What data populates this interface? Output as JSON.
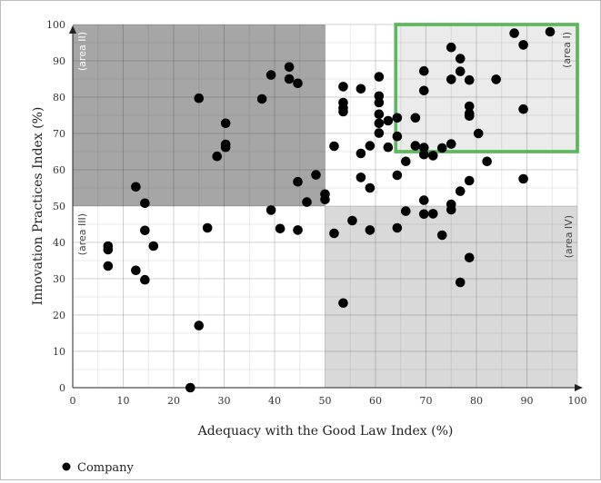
{
  "chart_data": {
    "type": "scatter",
    "xlabel": "Adequacy with the Good Law Index (%)",
    "ylabel": "Innovation Practices Index  (%)",
    "xlim": [
      0,
      100
    ],
    "ylim": [
      0,
      100
    ],
    "xticks": [
      "0",
      "10",
      "20",
      "30",
      "40",
      "50",
      "60",
      "70",
      "80",
      "90",
      "100"
    ],
    "yticks": [
      "0",
      "10",
      "20",
      "30",
      "40",
      "50",
      "60",
      "70",
      "80",
      "90",
      "100"
    ],
    "grid": true,
    "legend_position": "bottom-left",
    "regions": [
      {
        "label": "(area II)",
        "x": [
          0,
          50
        ],
        "y": [
          50,
          100
        ],
        "color": "#a6a6a6"
      },
      {
        "label": "(area III)",
        "x": [
          0,
          50
        ],
        "y": [
          0,
          50
        ],
        "color": "#ffffff"
      },
      {
        "label": "(area IV)",
        "x": [
          50,
          100
        ],
        "y": [
          0,
          50
        ],
        "color": "#d9d9d9"
      },
      {
        "label": "(area I)",
        "x": [
          64,
          100
        ],
        "y": [
          65,
          100
        ],
        "color": "#ebebeb",
        "border": "#5cb85c"
      }
    ],
    "series": [
      {
        "name": "Company",
        "color": "#000000",
        "points": [
          [
            7,
            39
          ],
          [
            7,
            38
          ],
          [
            7,
            33.5
          ],
          [
            12.5,
            55.3
          ],
          [
            12.5,
            32.3
          ],
          [
            14.3,
            50.8
          ],
          [
            14.3,
            43.3
          ],
          [
            14.3,
            29.7
          ],
          [
            16,
            39
          ],
          [
            23.3,
            0
          ],
          [
            25,
            79.7
          ],
          [
            25,
            17.1
          ],
          [
            26.7,
            44
          ],
          [
            28.6,
            63.7
          ],
          [
            30.3,
            72.8
          ],
          [
            30.3,
            67
          ],
          [
            30.3,
            66.2
          ],
          [
            37.5,
            79.5
          ],
          [
            39.3,
            86.1
          ],
          [
            39.3,
            48.9
          ],
          [
            41.1,
            43.8
          ],
          [
            42.9,
            88.3
          ],
          [
            42.9,
            85
          ],
          [
            44.6,
            83.8
          ],
          [
            44.6,
            56.7
          ],
          [
            44.6,
            43.4
          ],
          [
            46.4,
            51.1
          ],
          [
            48.2,
            58.6
          ],
          [
            50,
            53.3
          ],
          [
            50,
            51.8
          ],
          [
            51.8,
            66.5
          ],
          [
            51.8,
            42.5
          ],
          [
            53.6,
            82.9
          ],
          [
            53.6,
            78.5
          ],
          [
            53.6,
            77
          ],
          [
            53.6,
            76
          ],
          [
            53.6,
            23.3
          ],
          [
            55.4,
            46
          ],
          [
            57.1,
            82.3
          ],
          [
            57.1,
            64.5
          ],
          [
            57.1,
            57.9
          ],
          [
            58.9,
            66.6
          ],
          [
            58.9,
            55
          ],
          [
            58.9,
            43.4
          ],
          [
            60.7,
            85.6
          ],
          [
            60.7,
            80.3
          ],
          [
            60.7,
            78.5
          ],
          [
            60.7,
            75.3
          ],
          [
            60.7,
            72.8
          ],
          [
            60.7,
            70.1
          ],
          [
            62.5,
            73.5
          ],
          [
            62.5,
            66.2
          ],
          [
            64.3,
            74.3
          ],
          [
            64.3,
            69.2
          ],
          [
            64.3,
            58.5
          ],
          [
            64.3,
            44
          ],
          [
            66,
            62.3
          ],
          [
            66,
            48.6
          ],
          [
            67.9,
            74.3
          ],
          [
            67.9,
            66.6
          ],
          [
            69.6,
            87.2
          ],
          [
            69.6,
            81.8
          ],
          [
            69.6,
            66.1
          ],
          [
            69.6,
            64.2
          ],
          [
            69.6,
            51.6
          ],
          [
            69.6,
            47.8
          ],
          [
            71.4,
            63.9
          ],
          [
            71.4,
            47.9
          ],
          [
            73.2,
            66
          ],
          [
            73.2,
            42
          ],
          [
            75,
            93.7
          ],
          [
            75,
            84.9
          ],
          [
            75,
            67.1
          ],
          [
            75,
            50.5
          ],
          [
            75,
            49
          ],
          [
            76.8,
            90.6
          ],
          [
            76.8,
            87.1
          ],
          [
            76.8,
            54.1
          ],
          [
            76.8,
            29
          ],
          [
            78.6,
            84.7
          ],
          [
            78.6,
            77.5
          ],
          [
            78.6,
            75.5
          ],
          [
            78.6,
            74.8
          ],
          [
            78.6,
            57
          ],
          [
            78.6,
            35.8
          ],
          [
            80.4,
            70
          ],
          [
            82.1,
            62.3
          ],
          [
            83.9,
            84.9
          ],
          [
            87.5,
            97.6
          ],
          [
            89.3,
            94.4
          ],
          [
            89.3,
            76.7
          ],
          [
            89.3,
            57.5
          ],
          [
            94.6,
            98
          ]
        ]
      }
    ]
  }
}
